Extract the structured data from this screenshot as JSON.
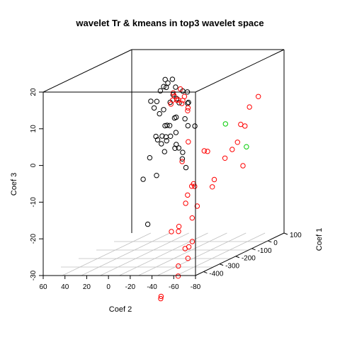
{
  "chart_data": {
    "type": "scatter",
    "title": "wavelet Tr & kmeans in top3 wavelet space",
    "axes": {
      "x": {
        "label": "Coef 2",
        "ticks": [
          60,
          40,
          20,
          0,
          -20,
          -40,
          -60,
          -80
        ]
      },
      "y": {
        "label": "Coef 1",
        "ticks": [
          100,
          0,
          -100,
          -200,
          -300,
          -400
        ]
      },
      "z": {
        "label": "Coef 3",
        "ticks": [
          20,
          10,
          0,
          -10,
          -20,
          -30
        ]
      }
    },
    "grid": "floor",
    "series": [
      {
        "color": "#000000",
        "points": [
          [
            28,
            2,
            8
          ],
          [
            22,
            -1,
            8
          ],
          [
            16,
            1,
            12
          ],
          [
            8,
            1,
            14
          ],
          [
            14,
            -3,
            14
          ],
          [
            12,
            0,
            13
          ],
          [
            18,
            -6,
            11
          ],
          [
            6,
            -8,
            10
          ],
          [
            12,
            -10,
            12
          ],
          [
            4,
            -6,
            12
          ],
          [
            17,
            -18,
            5
          ],
          [
            14,
            -13,
            6
          ],
          [
            2,
            -13,
            9
          ],
          [
            8,
            -13,
            8
          ],
          [
            2,
            -16,
            4
          ],
          [
            -9,
            -21,
            11
          ],
          [
            -9,
            -14,
            8
          ],
          [
            -1,
            -18,
            8
          ],
          [
            6,
            -24,
            -1
          ],
          [
            1,
            -24,
            0
          ],
          [
            2,
            -26,
            4
          ],
          [
            9,
            -25,
            2
          ],
          [
            18,
            -23,
            -2
          ],
          [
            19,
            -27,
            -1
          ],
          [
            9,
            -32,
            -1
          ],
          [
            14,
            -22,
            -1
          ],
          [
            -3,
            -9,
            11
          ],
          [
            14,
            -27,
            -3
          ],
          [
            26,
            -18,
            -7
          ],
          [
            -10,
            -26,
            8
          ],
          [
            6,
            -29,
            2
          ],
          [
            -11,
            -31,
            2
          ],
          [
            10,
            -31,
            2
          ],
          [
            10,
            -34,
            -5
          ],
          [
            8,
            -35,
            -2
          ],
          [
            -18,
            -35,
            2
          ],
          [
            -9,
            -36,
            4
          ],
          [
            -3,
            -34,
            -4
          ],
          [
            0,
            -37,
            -4
          ],
          [
            -6,
            -32,
            -7
          ],
          [
            26,
            -59,
            -12
          ],
          [
            -1,
            -36,
            -3
          ],
          [
            20,
            -71,
            -24
          ],
          [
            40,
            104,
            4
          ],
          [
            -8,
            -43,
            -5
          ],
          [
            -12,
            -50,
            -9
          ],
          [
            14,
            -57,
            -11
          ]
        ]
      },
      {
        "color": "#ff0000",
        "points": [
          [
            -5,
            -28,
            8
          ],
          [
            -2,
            -29,
            9
          ],
          [
            3,
            -31,
            9
          ],
          [
            -7,
            -36,
            9
          ],
          [
            -8,
            -32,
            10
          ],
          [
            -1,
            -32,
            9
          ],
          [
            2,
            -27,
            10
          ],
          [
            2,
            -34,
            11
          ],
          [
            4,
            -35,
            8
          ],
          [
            -4,
            -30,
            12
          ],
          [
            -10,
            -26,
            6
          ],
          [
            -12,
            -37,
            7
          ],
          [
            -38,
            -62,
            -14
          ],
          [
            -40,
            -63,
            -12
          ],
          [
            -51,
            -71,
            -6
          ],
          [
            -55,
            -53,
            -4
          ],
          [
            -60,
            -54,
            -2
          ],
          [
            -68,
            -74,
            -8
          ],
          [
            -64,
            -61,
            3
          ],
          [
            -71,
            -82,
            3
          ],
          [
            -74,
            -74,
            8
          ],
          [
            -83,
            -80,
            11
          ],
          [
            -43,
            -125,
            -3
          ],
          [
            -39,
            -119,
            -3
          ],
          [
            -21,
            -96,
            -1
          ],
          [
            -18,
            -114,
            -6
          ],
          [
            -32,
            -149,
            -12
          ],
          [
            -35,
            -151,
            -12
          ],
          [
            -31,
            -168,
            -14
          ],
          [
            -36,
            -165,
            -11
          ],
          [
            -16,
            -167,
            -24
          ],
          [
            -40,
            -169,
            -17
          ],
          [
            -27,
            -195,
            -22
          ],
          [
            -31,
            -180,
            -16
          ],
          [
            -37,
            -180,
            -20
          ],
          [
            -29,
            -211,
            -23
          ],
          [
            -33,
            -197,
            -28
          ],
          [
            -40,
            -200,
            -26
          ],
          [
            -40,
            -221,
            -27
          ],
          [
            -40,
            -227,
            -30
          ],
          [
            -32,
            -232,
            -32
          ],
          [
            -30,
            -220,
            -35
          ],
          [
            -18,
            -245,
            -40
          ],
          [
            -22,
            -274,
            -40
          ]
        ]
      },
      {
        "color": "#00cc00",
        "points": [
          [
            -42,
            -7,
            2
          ],
          [
            -70,
            -66,
            -3
          ]
        ]
      }
    ]
  }
}
